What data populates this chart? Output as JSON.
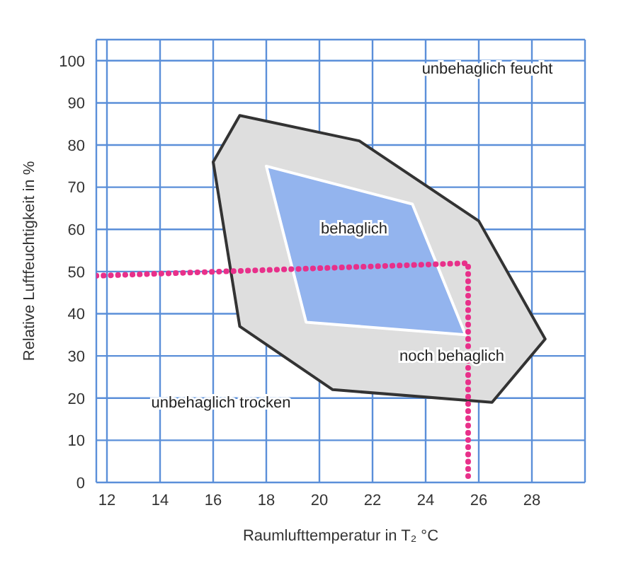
{
  "chart_data": {
    "type": "area",
    "xlabel": "Raumlufttemperatur in T₂ °C",
    "ylabel": "Relative Luftfeuchtigkeit in %",
    "xlim": [
      11.6,
      30
    ],
    "xticks": [
      12,
      14,
      16,
      18,
      20,
      22,
      24,
      26,
      28
    ],
    "ylim": [
      0,
      105
    ],
    "yticks": [
      0,
      10,
      20,
      30,
      40,
      50,
      60,
      70,
      80,
      90,
      100
    ],
    "grid": true,
    "series": [
      {
        "color": "#dedede",
        "x": [
          17,
          21.5,
          26,
          28.5,
          26.5,
          20.5,
          17,
          16
        ],
        "values": [
          87,
          81,
          62,
          34,
          19,
          22,
          37,
          76
        ]
      },
      {
        "color": "#93b4ee",
        "x": [
          18,
          23.5,
          25.5,
          19.5
        ],
        "values": [
          75,
          66,
          35,
          38
        ]
      },
      {
        "type": "line",
        "color": "#e8308a",
        "line_style": "dotted",
        "x": [
          11.6,
          25.6,
          25.6
        ],
        "values": [
          49,
          52,
          0
        ]
      }
    ],
    "annotations": [
      "unbehaglich feucht",
      "behaglich",
      "noch behaglich",
      "unbehaglich trocken"
    ]
  }
}
